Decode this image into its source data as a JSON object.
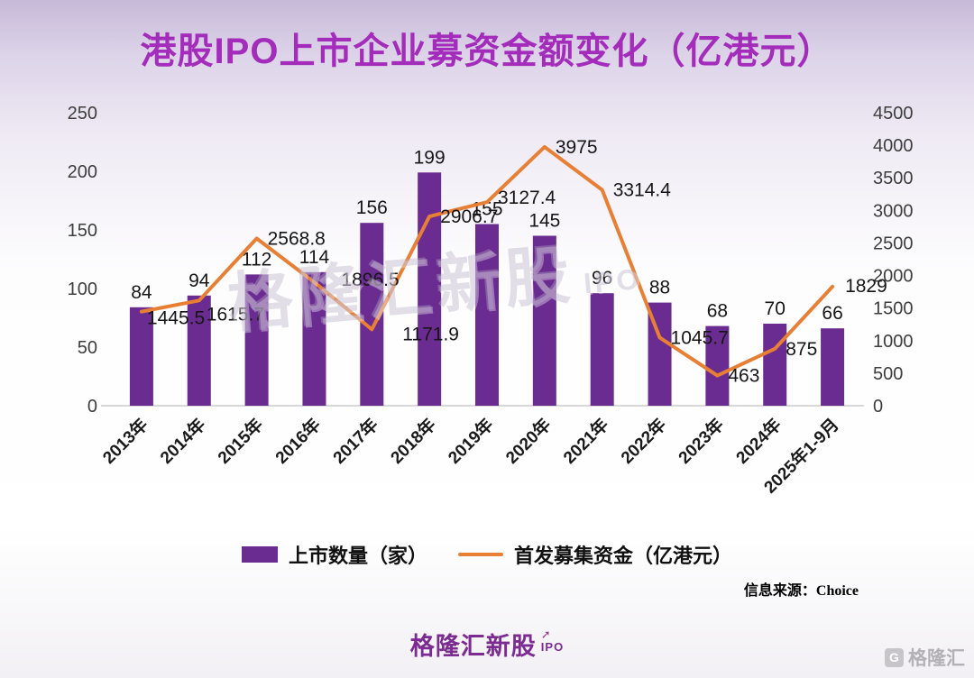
{
  "title": "港股IPO上市企业募资金额变化（亿港元）",
  "source": "信息来源：Choice",
  "watermark": {
    "main": "格隆汇新股",
    "sub": "IPO"
  },
  "footer": {
    "brand": "格隆汇新股",
    "brand_sub": "IPO",
    "brand_arrow": "➚",
    "corner": "格隆汇",
    "corner_icon": "G"
  },
  "legend": [
    {
      "label": "上市数量（家）",
      "type": "bar",
      "color": "#6a2c91"
    },
    {
      "label": "首发募集资金（亿港元）",
      "type": "line",
      "color": "#e77f35"
    }
  ],
  "chart_data": {
    "type": "bar",
    "subtype": "bar+line combo, dual axis",
    "title": "港股IPO上市企业募资金额变化（亿港元）",
    "categories": [
      "2013年",
      "2014年",
      "2015年",
      "2016年",
      "2017年",
      "2018年",
      "2019年",
      "2020年",
      "2021年",
      "2022年",
      "2023年",
      "2024年",
      "2025年1-9月"
    ],
    "series": [
      {
        "name": "上市数量（家）",
        "type": "bar",
        "axis": "left",
        "color": "#6a2c91",
        "values": [
          84,
          94,
          112,
          114,
          156,
          199,
          155,
          145,
          96,
          88,
          68,
          70,
          66
        ]
      },
      {
        "name": "首发募集资金（亿港元）",
        "type": "line",
        "axis": "right",
        "color": "#e77f35",
        "values": [
          1445.5,
          1615.7,
          2568.8,
          1896.5,
          1171.9,
          2906.7,
          3127.4,
          3975,
          3314.4,
          1045.7,
          463,
          875,
          1829
        ]
      }
    ],
    "left_axis": {
      "min": 0,
      "max": 250,
      "step": 50,
      "ticks": [
        0,
        50,
        100,
        150,
        200,
        250
      ]
    },
    "right_axis": {
      "min": 0,
      "max": 4500,
      "step": 500,
      "ticks": [
        0,
        500,
        1000,
        1500,
        2000,
        2500,
        3000,
        3500,
        4000,
        4500
      ]
    },
    "grid": false,
    "legend_position": "bottom"
  }
}
